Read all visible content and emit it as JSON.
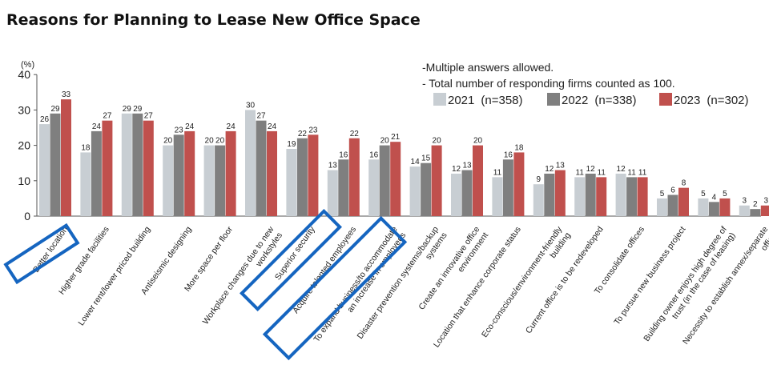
{
  "header": {
    "title": "Reasons for Planning to Lease New Office Space"
  },
  "notes": [
    "-Multiple answers allowed.",
    "- Total number of responding firms  counted as 100."
  ],
  "colors": {
    "y2021": "#c8ced3",
    "y2022": "#7f7f7f",
    "y2023": "#c0504d",
    "highlight": "#1565c0"
  },
  "chart_data": {
    "type": "bar",
    "title": "Reasons for Planning to Lease New Office Space",
    "unit_label": "(%)",
    "ylim": [
      0,
      40
    ],
    "yticks": [
      0,
      10,
      20,
      30,
      40
    ],
    "legend_position": "top-right",
    "categories": [
      "Better location",
      "Higher grade facilities",
      "Lower rent/lower priced building",
      "Antiseismic designing",
      "More space per floor",
      [
        "Workplace changes due to new",
        "workstyles"
      ],
      "Superior security",
      "Acquire talented employees",
      [
        "To expand business/to accommodate",
        "an increase in employees"
      ],
      [
        "Disaster prevention systems/backup",
        "systems"
      ],
      [
        "Create an innovative office",
        "environment"
      ],
      "Location that enhance corporate status",
      [
        "Eco-conscious/environment-friendly",
        "building"
      ],
      "Current office is to be redeveloped",
      "To consolidate offices",
      "To pursue new business project",
      [
        "Building owner enjoys high degree of",
        "trust (in the case of leasing)"
      ],
      [
        "Necessity to establish annex/separate",
        "office"
      ]
    ],
    "series": [
      {
        "name": "2021",
        "n_label": "(n=358)",
        "values": [
          26,
          18,
          29,
          20,
          20,
          30,
          19,
          13,
          16,
          14,
          12,
          11,
          9,
          11,
          12,
          5,
          5,
          3
        ]
      },
      {
        "name": "2022",
        "n_label": "(n=338)",
        "values": [
          29,
          24,
          29,
          23,
          20,
          27,
          22,
          16,
          20,
          15,
          13,
          16,
          12,
          12,
          11,
          6,
          4,
          2
        ]
      },
      {
        "name": "2023",
        "n_label": "(n=302)",
        "values": [
          33,
          27,
          27,
          24,
          24,
          24,
          23,
          22,
          21,
          20,
          20,
          18,
          13,
          11,
          11,
          8,
          5,
          3
        ]
      }
    ],
    "highlighted_categories": [
      0,
      7,
      8
    ]
  }
}
